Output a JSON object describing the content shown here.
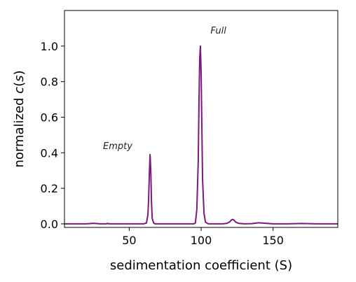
{
  "chart_data": {
    "type": "line",
    "xlabel": "sedimentation coefficient (S)",
    "ylabel_prefix": "normalized ",
    "ylabel_italic": "c",
    "ylabel_paren": "(",
    "ylabel_var": "s",
    "ylabel_close": ")",
    "xlim": [
      5,
      195
    ],
    "ylim": [
      -0.02,
      1.2
    ],
    "xticks": [
      50,
      100,
      150
    ],
    "yticks": [
      0.0,
      0.2,
      0.4,
      0.6,
      0.8,
      1.0
    ],
    "xtick_labels": [
      "50",
      "100",
      "150"
    ],
    "ytick_labels": [
      "0.0",
      "0.2",
      "0.4",
      "0.6",
      "0.8",
      "1.0"
    ],
    "grid": false,
    "line_color": "#7b1a7e",
    "series": [
      {
        "x": [
          5,
          20,
          25,
          30,
          34,
          35,
          36,
          40,
          50,
          55,
          60,
          62,
          63,
          63.5,
          64,
          64.5,
          65,
          65.5,
          66,
          67,
          68,
          70,
          80,
          90,
          95,
          96,
          97,
          98,
          98.5,
          99,
          99.5,
          100,
          100.5,
          101,
          102,
          103,
          105,
          110,
          115,
          118,
          120,
          121,
          122,
          123,
          124,
          126,
          130,
          135,
          140,
          145,
          150,
          160,
          170,
          180,
          195
        ],
        "y": [
          0.0,
          0.0,
          0.003,
          0.0,
          0.0,
          0.003,
          0.0,
          0.0,
          0.0,
          0.0,
          0.0,
          0.005,
          0.05,
          0.14,
          0.28,
          0.39,
          0.3,
          0.12,
          0.03,
          0.005,
          0.0,
          0.0,
          0.0,
          0.0,
          0.0,
          0.005,
          0.08,
          0.35,
          0.68,
          0.93,
          1.0,
          0.85,
          0.55,
          0.25,
          0.06,
          0.01,
          0.0,
          0.0,
          0.0,
          0.003,
          0.012,
          0.022,
          0.025,
          0.02,
          0.01,
          0.003,
          0.0,
          0.001,
          0.006,
          0.003,
          0.0,
          0.0,
          0.002,
          0.0,
          0.0
        ]
      }
    ],
    "annotations": [
      {
        "text": "Empty",
        "x": 42,
        "y": 0.42
      },
      {
        "text": "Full",
        "x": 112,
        "y": 1.07
      }
    ]
  }
}
